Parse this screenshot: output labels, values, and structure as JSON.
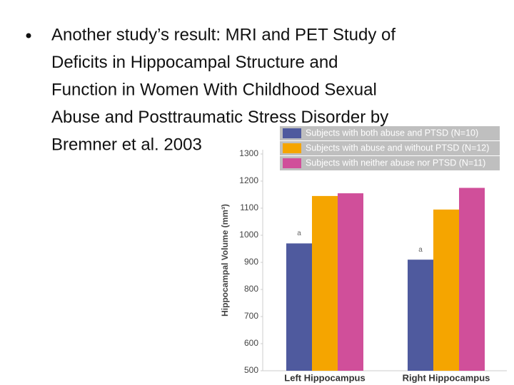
{
  "slide": {
    "bullet_lines": [
      "Another study’s result: MRI and PET Study of",
      "Deficits in Hippocampal Structure and",
      "Function in Women With Childhood Sexual",
      "Abuse and Posttraumatic Stress Disorder by",
      "Bremner et al. 2003"
    ]
  },
  "chart_data": {
    "type": "bar",
    "y_label": "Hippocampal Volume (mm³)",
    "categories": [
      "Left Hippocampus",
      "Right Hippocampus"
    ],
    "series": [
      {
        "name": "Subjects with both abuse and PTSD (N=10)",
        "color": "#4f5a9e",
        "values": [
          970,
          910
        ]
      },
      {
        "name": "Subjects with abuse and without PTSD (N=12)",
        "color": "#f5a500",
        "values": [
          1145,
          1095
        ]
      },
      {
        "name": "Subjects with neither abuse nor PTSD (N=11)",
        "color": "#d04f9a",
        "values": [
          1155,
          1175
        ]
      }
    ],
    "annotations": [
      "a",
      "a"
    ],
    "ylim": [
      500,
      1300
    ],
    "yticks": [
      500,
      600,
      700,
      800,
      900,
      1000,
      1100,
      1200,
      1300
    ]
  }
}
